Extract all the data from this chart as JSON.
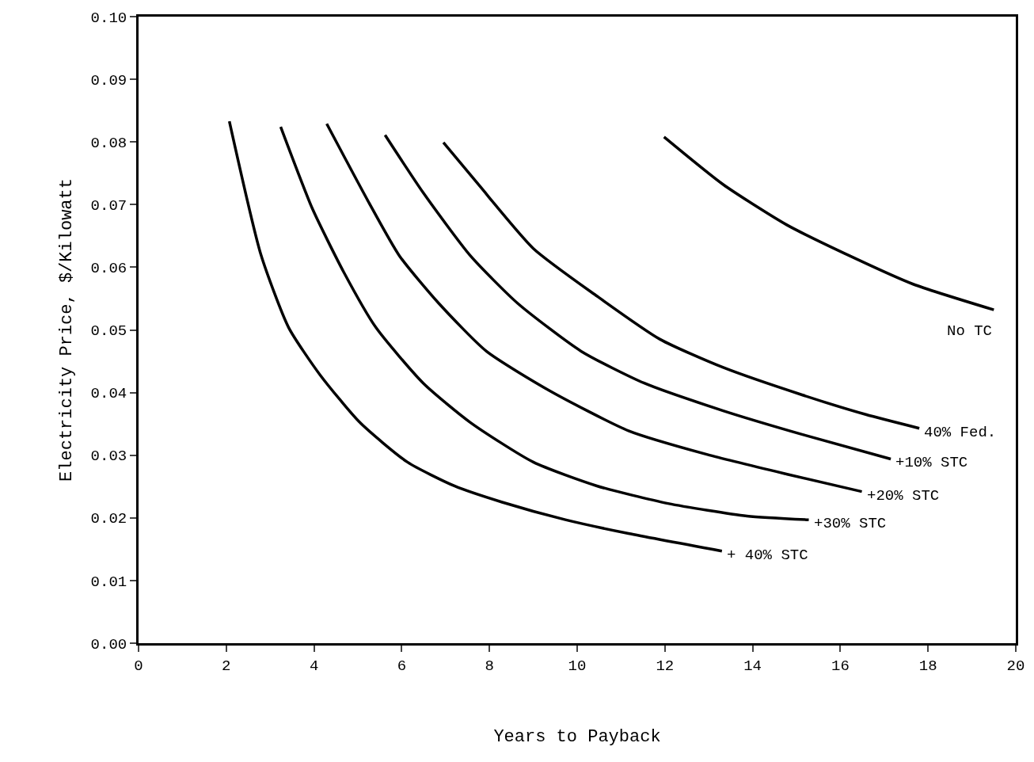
{
  "chart_data": {
    "type": "line",
    "xlabel": "Years to Payback",
    "ylabel": "Electricity Price, $/Kilowatt",
    "xlim": [
      0,
      20
    ],
    "ylim": [
      0,
      0.1
    ],
    "xticks": [
      0,
      2,
      4,
      6,
      8,
      10,
      12,
      14,
      16,
      18,
      20
    ],
    "yticks": [
      {
        "value": 0,
        "label": "0.00"
      },
      {
        "value": 0.01,
        "label": "0.01"
      },
      {
        "value": 0.02,
        "label": "0.02"
      },
      {
        "value": 0.03,
        "label": "0.03"
      },
      {
        "value": 0.04,
        "label": "0.04"
      },
      {
        "value": 0.05,
        "label": "0.05"
      },
      {
        "value": 0.06,
        "label": "0.06"
      },
      {
        "value": 0.07,
        "label": "0.07"
      },
      {
        "value": 0.08,
        "label": "0.08"
      },
      {
        "value": 0.09,
        "label": "0.09"
      },
      {
        "value": 0.1,
        "label": "0.10"
      }
    ],
    "marker": "none",
    "line_style": "solid",
    "series": [
      {
        "name": "No TC",
        "color": "#000000",
        "x": [
          11.98,
          13.33,
          14.77,
          16.22,
          17.66,
          19.5
        ],
        "values": [
          0.0808,
          0.0732,
          0.0668,
          0.0618,
          0.0573,
          0.0532
        ]
      },
      {
        "name": "40% Fed.",
        "color": "#000000",
        "x": [
          6.95,
          7.75,
          9.0,
          10.45,
          11.89,
          13.33,
          15.14,
          16.58,
          17.8
        ],
        "values": [
          0.0799,
          0.0732,
          0.063,
          0.0554,
          0.0485,
          0.044,
          0.0396,
          0.0365,
          0.0343
        ]
      },
      {
        "name": "+10% STC",
        "color": "#000000",
        "x": [
          5.62,
          6.49,
          7.57,
          8.65,
          10.09,
          11.53,
          13.33,
          15.14,
          17.15
        ],
        "values": [
          0.0811,
          0.0719,
          0.0618,
          0.0542,
          0.0466,
          0.0415,
          0.0371,
          0.0333,
          0.0294
        ]
      },
      {
        "name": "+20% STC",
        "color": "#000000",
        "x": [
          4.29,
          5.23,
          5.95,
          6.85,
          7.93,
          9.37,
          11.17,
          12.97,
          14.77,
          16.49
        ],
        "values": [
          0.0829,
          0.0706,
          0.0618,
          0.0542,
          0.0466,
          0.0403,
          0.0339,
          0.0301,
          0.027,
          0.0242
        ]
      },
      {
        "name": "+30% STC",
        "color": "#000000",
        "x": [
          3.24,
          3.96,
          4.68,
          5.41,
          6.49,
          7.57,
          9.0,
          10.45,
          12.07,
          13.87,
          15.28
        ],
        "values": [
          0.0824,
          0.0694,
          0.0592,
          0.0504,
          0.0415,
          0.0352,
          0.0289,
          0.0251,
          0.0223,
          0.0203,
          0.0197
        ]
      },
      {
        "name": "+ 40% STC",
        "color": "#000000",
        "x": [
          2.07,
          2.79,
          3.42,
          4.14,
          5.05,
          6.13,
          7.2,
          8.29,
          9.73,
          11.17,
          13.3
        ],
        "values": [
          0.0833,
          0.062,
          0.0504,
          0.0428,
          0.0352,
          0.0289,
          0.0251,
          0.0225,
          0.0197,
          0.0175,
          0.0147
        ]
      }
    ]
  }
}
